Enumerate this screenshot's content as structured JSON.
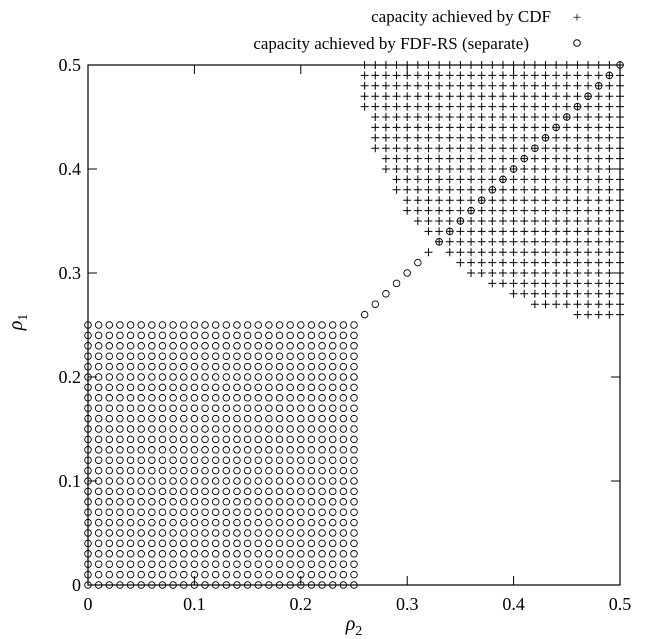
{
  "chart_data": {
    "type": "scatter",
    "xlabel": "ρ",
    "xlabel_sub": "2",
    "ylabel": "ρ",
    "ylabel_sub": "1",
    "xlim": [
      0,
      0.5
    ],
    "ylim": [
      0,
      0.5
    ],
    "x_ticks": [
      "0",
      "0.1",
      "0.2",
      "0.3",
      "0.4",
      "0.5"
    ],
    "y_ticks": [
      "0",
      "0.1",
      "0.2",
      "0.3",
      "0.4",
      "0.5"
    ],
    "grid": false,
    "legend_position": "top-right, outside plot",
    "series": [
      {
        "name": "capacity achieved by CDF",
        "marker": "plus",
        "region": "all grid points (step 0.01) in [0.25,0.5]x[0.25,0.5] with (x-0.5)^2+(y-0.5)^2 <= 0.245^2, plus diagonal points",
        "grid_step": 0.01,
        "diagonal_points": [
          [
            0.32,
            0.32
          ],
          [
            0.33,
            0.33
          ],
          [
            0.34,
            0.34
          ],
          [
            0.35,
            0.35
          ],
          [
            0.36,
            0.36
          ],
          [
            0.37,
            0.37
          ],
          [
            0.38,
            0.38
          ],
          [
            0.39,
            0.39
          ],
          [
            0.4,
            0.4
          ],
          [
            0.41,
            0.41
          ],
          [
            0.42,
            0.42
          ],
          [
            0.43,
            0.43
          ],
          [
            0.44,
            0.44
          ],
          [
            0.45,
            0.45
          ],
          [
            0.46,
            0.46
          ],
          [
            0.47,
            0.47
          ],
          [
            0.48,
            0.48
          ],
          [
            0.49,
            0.49
          ],
          [
            0.5,
            0.5
          ]
        ]
      },
      {
        "name": "capacity achieved by FDF-RS (separate)",
        "marker": "circle",
        "region": "all grid points (step 0.01) in [0,0.25]x[0,0.25], plus diagonal points",
        "grid_step": 0.01,
        "diagonal_points": [
          [
            0.26,
            0.26
          ],
          [
            0.27,
            0.27
          ],
          [
            0.28,
            0.28
          ],
          [
            0.29,
            0.29
          ],
          [
            0.3,
            0.3
          ],
          [
            0.31,
            0.31
          ],
          [
            0.33,
            0.33
          ],
          [
            0.34,
            0.34
          ],
          [
            0.35,
            0.35
          ],
          [
            0.36,
            0.36
          ],
          [
            0.37,
            0.37
          ],
          [
            0.38,
            0.38
          ],
          [
            0.39,
            0.39
          ],
          [
            0.4,
            0.4
          ],
          [
            0.41,
            0.41
          ],
          [
            0.42,
            0.42
          ],
          [
            0.43,
            0.43
          ],
          [
            0.44,
            0.44
          ],
          [
            0.45,
            0.45
          ],
          [
            0.46,
            0.46
          ],
          [
            0.47,
            0.47
          ],
          [
            0.48,
            0.48
          ],
          [
            0.49,
            0.49
          ],
          [
            0.5,
            0.5
          ]
        ]
      }
    ]
  }
}
